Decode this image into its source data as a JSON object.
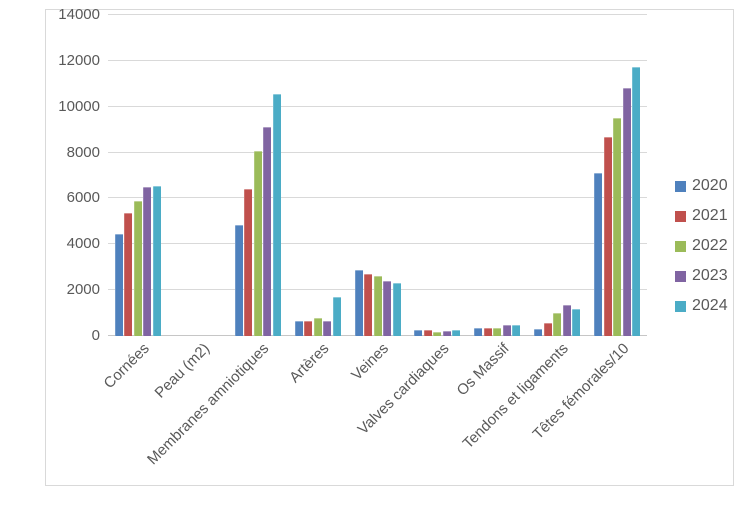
{
  "chart_data": {
    "type": "bar",
    "title": "",
    "xlabel": "",
    "ylabel": "",
    "categories": [
      "Cornées",
      "Peau (m2)",
      "Membranes amniotiques",
      "Artères",
      "Veines",
      "Valves cardiaques",
      "Os Massif",
      "Tendons et ligaments",
      "Têtes fémorales/10"
    ],
    "series": [
      {
        "name": "2020",
        "color": "#4F81BD",
        "values": [
          4450,
          0,
          4850,
          640,
          2900,
          250,
          330,
          300,
          7100
        ]
      },
      {
        "name": "2021",
        "color": "#C0504D",
        "values": [
          5350,
          0,
          6400,
          640,
          2700,
          260,
          360,
          570,
          8700
        ]
      },
      {
        "name": "2022",
        "color": "#9BBB59",
        "values": [
          5900,
          0,
          8050,
          780,
          2600,
          190,
          360,
          1000,
          9500
        ]
      },
      {
        "name": "2023",
        "color": "#8064A2",
        "values": [
          6500,
          0,
          9100,
          670,
          2400,
          220,
          500,
          1350,
          10800
        ]
      },
      {
        "name": "2024",
        "color": "#4BACC6",
        "values": [
          6550,
          0,
          10550,
          1720,
          2300,
          280,
          460,
          1200,
          11750
        ]
      }
    ],
    "ylim": [
      0,
      14000
    ],
    "ytick_step": 2000,
    "grid": true,
    "legend_position": "right"
  },
  "colors": {
    "frame_border": "#D9D9D9",
    "gridline": "#D9D9D9",
    "tick_text": "#595959",
    "legend_text": "#595959",
    "background": "#FFFFFF"
  }
}
